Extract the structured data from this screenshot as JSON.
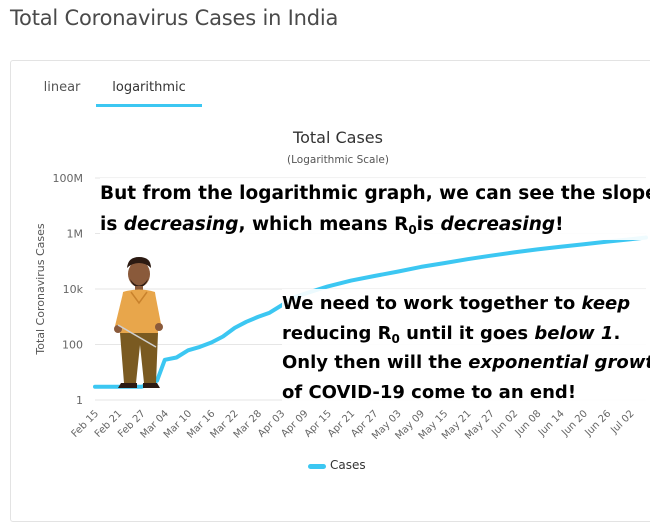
{
  "page": {
    "title": "Total Coronavirus Cases in India"
  },
  "tabs": [
    {
      "label": "linear",
      "active": false
    },
    {
      "label": "logarithmic",
      "active": true
    }
  ],
  "annotations": {
    "a1": {
      "line1": "But from the logarithmic graph, we can see the slope",
      "l2_is": "is ",
      "l2_decreasing": "decreasing",
      "l2_means": ", which means R",
      "l2_sub": "0",
      "l2_is2": "is ",
      "l2_decreasing2": "decreasing",
      "l2_end": "!"
    },
    "a2": {
      "l1_pre": "We need to work together to ",
      "l1_keep": "keep",
      "l2_pre": "reducing R",
      "l2_sub": "0",
      "l2_mid": " until it goes ",
      "l2_below": "below 1",
      "l2_end": ".",
      "l3_pre": "Only then will the ",
      "l3_exp": "exponential growth",
      "l4": "of COVID-19 come to an end!"
    }
  },
  "colors": {
    "series": "#3cc7f2",
    "grid": "#e6e6e6",
    "axis_text": "#666666"
  },
  "chart_data": {
    "type": "line",
    "title": "Total Cases",
    "subtitle": "(Logarithmic Scale)",
    "ylabel": "Total Coronavirus Cases",
    "xlabel": "",
    "y_scale": "log",
    "ylim": [
      1,
      100000000
    ],
    "y_ticks": [
      1,
      100,
      10000,
      1000000,
      100000000
    ],
    "y_tick_labels": [
      "1",
      "100",
      "10k",
      "1M",
      "100M"
    ],
    "x_tick_labels": [
      "Feb 15",
      "Feb 21",
      "Feb 27",
      "Mar 04",
      "Mar 10",
      "Mar 16",
      "Mar 22",
      "Mar 28",
      "Apr 03",
      "Apr 09",
      "Apr 15",
      "Apr 21",
      "Apr 27",
      "May 03",
      "May 09",
      "May 15",
      "May 21",
      "May 27",
      "Jun 02",
      "Jun 08",
      "Jun 14",
      "Jun 20",
      "Jun 26",
      "Jul 02"
    ],
    "grid": true,
    "legend_position": "bottom",
    "series": [
      {
        "name": "Cases",
        "x": [
          "Feb 15",
          "Feb 21",
          "Feb 27",
          "Mar 02",
          "Mar 04",
          "Mar 07",
          "Mar 10",
          "Mar 13",
          "Mar 16",
          "Mar 19",
          "Mar 22",
          "Mar 25",
          "Mar 28",
          "Mar 31",
          "Apr 03",
          "Apr 06",
          "Apr 09",
          "Apr 15",
          "Apr 21",
          "Apr 27",
          "May 03",
          "May 09",
          "May 15",
          "May 21",
          "May 27",
          "Jun 02",
          "Jun 08",
          "Jun 14",
          "Jun 20",
          "Jun 26",
          "Jul 02",
          "Jul 06"
        ],
        "values": [
          3,
          3,
          3,
          5,
          28,
          34,
          62,
          82,
          118,
          195,
          396,
          657,
          987,
          1397,
          2543,
          4789,
          6725,
          12380,
          20080,
          29435,
          42505,
          62808,
          85784,
          118447,
          158086,
          207615,
          266598,
          332424,
          410451,
          508953,
          625544,
          719665
        ]
      }
    ]
  }
}
